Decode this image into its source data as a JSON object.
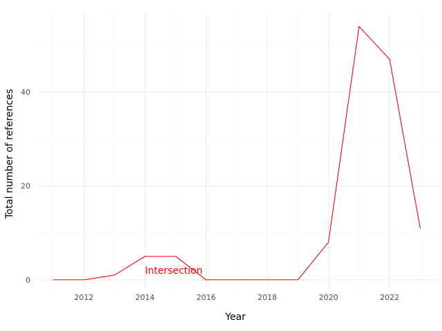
{
  "chart_data": {
    "type": "line",
    "title": "",
    "xlabel": "Year",
    "ylabel": "Total number of references",
    "xlim": [
      2010.5,
      2023.6
    ],
    "ylim": [
      -1.8,
      57
    ],
    "x_ticks": [
      2012,
      2014,
      2016,
      2018,
      2020,
      2022
    ],
    "y_ticks": [
      0,
      20,
      40
    ],
    "grid": true,
    "legend": "none",
    "series": [
      {
        "color": "#ff0000",
        "x": [
          2011,
          2012,
          2013,
          2014,
          2015,
          2016,
          2017,
          2018,
          2019,
          2020,
          2021,
          2022,
          2023
        ],
        "y": [
          0,
          0,
          1,
          5,
          5,
          0,
          0,
          0,
          0,
          8,
          54,
          47,
          11
        ]
      }
    ],
    "annotations": [
      {
        "text": "Intersection",
        "x": 2014,
        "y": 2,
        "color": "#ff0000"
      }
    ]
  }
}
